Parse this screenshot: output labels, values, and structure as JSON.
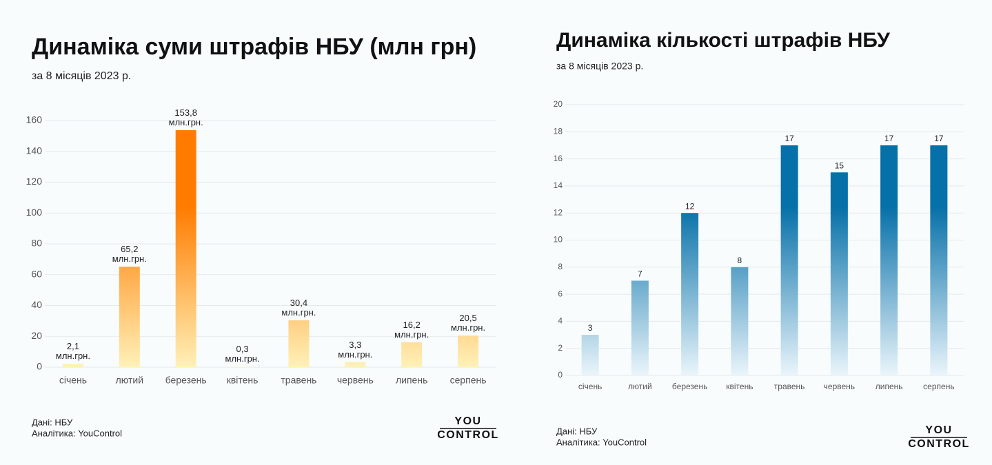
{
  "chart_data": [
    {
      "type": "bar",
      "title": "Динаміка суми штрафів НБУ (млн грн)",
      "subtitle": "за 8 місяців 2023 р.",
      "categories": [
        "січень",
        "лютий",
        "березень",
        "квітень",
        "травень",
        "червень",
        "липень",
        "серпень"
      ],
      "values": [
        2.1,
        65.2,
        153.8,
        0.3,
        30.4,
        3.3,
        16.2,
        20.5
      ],
      "value_labels": [
        "2,1 млн.грн.",
        "65,2 млн.грн.",
        "153,8 млн.грн.",
        "0,3 млн.грн.",
        "30,4 млн.грн.",
        "3,3 млн.грн.",
        "16,2 млн.грн.",
        "20,5 млн.грн."
      ],
      "gradient": [
        "#ff7c00",
        "#fff1b8"
      ],
      "ylim": [
        0,
        160
      ],
      "yticks": [
        0,
        20,
        40,
        60,
        80,
        100,
        120,
        140,
        160
      ],
      "grid": true,
      "source": "Дані: НБУ",
      "credit": "Аналітика: YouControl",
      "logo": [
        "YOU",
        "CONTROL"
      ]
    },
    {
      "type": "bar",
      "title": "Динаміка кількості штрафів НБУ",
      "subtitle": "за 8 місяців 2023 р.",
      "categories": [
        "січень",
        "лютий",
        "березень",
        "квітень",
        "травень",
        "червень",
        "липень",
        "серпень"
      ],
      "values": [
        3,
        7,
        12,
        8,
        17,
        15,
        17,
        17
      ],
      "gradient": [
        "#0670a8",
        "#eaf5fb"
      ],
      "ylim": [
        0,
        20
      ],
      "yticks": [
        0,
        2,
        4,
        6,
        8,
        10,
        12,
        14,
        16,
        18,
        20
      ],
      "grid": true,
      "source": "Дані: НБУ",
      "credit": "Аналітика: YouControl",
      "logo": [
        "YOU",
        "CONTROL"
      ]
    }
  ]
}
